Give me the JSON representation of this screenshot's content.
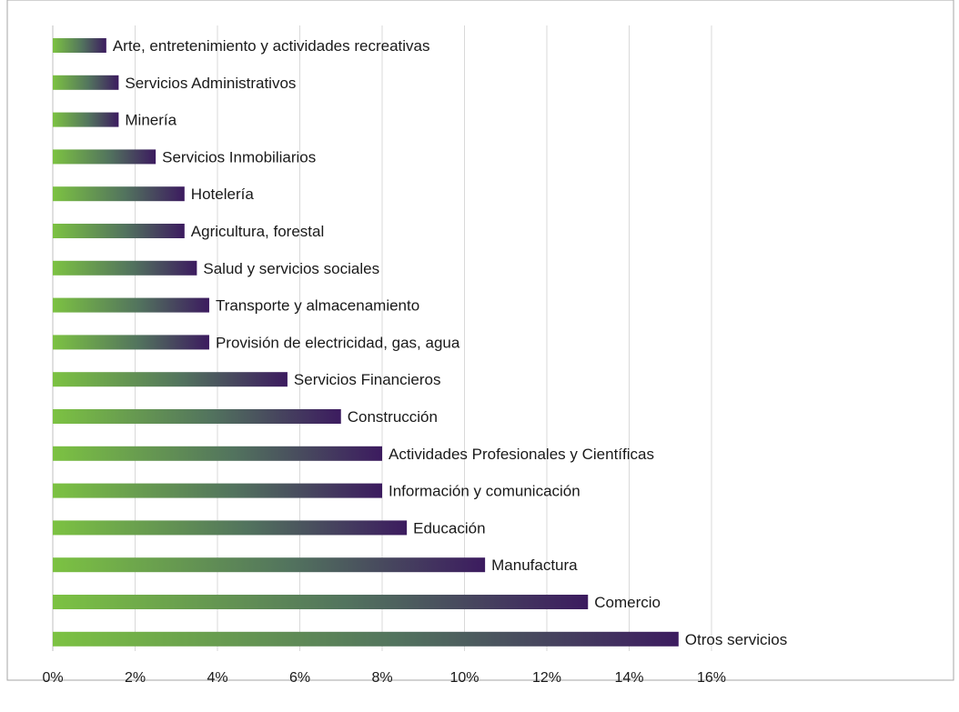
{
  "chart_data": {
    "type": "bar",
    "orientation": "horizontal",
    "title": "",
    "xlabel": "",
    "ylabel": "",
    "xlim": [
      0,
      16
    ],
    "tick_step": 2,
    "tick_labels": [
      "0%",
      "2%",
      "4%",
      "6%",
      "8%",
      "10%",
      "12%",
      "14%",
      "16%"
    ],
    "grid": true,
    "legend": "none",
    "data_labels": "category name at bar end",
    "categories": [
      "Arte, entretenimiento y actividades recreativas",
      "Servicios Administrativos",
      "Minería",
      "Servicios Inmobiliarios",
      "Hotelería",
      "Agricultura, forestal",
      "Salud y servicios sociales",
      "Transporte y almacenamiento",
      "Provisión de electricidad, gas, agua",
      "Servicios Financieros",
      "Construcción",
      "Actividades Profesionales y Científicas",
      "Información y comunicación",
      "Educación",
      "Manufactura",
      "Comercio",
      "Otros servicios"
    ],
    "values": [
      1.3,
      1.6,
      1.6,
      2.5,
      3.2,
      3.2,
      3.5,
      3.8,
      3.8,
      5.7,
      7.0,
      8.0,
      8.0,
      8.6,
      10.5,
      13.0,
      15.2
    ],
    "colors": {
      "bar_gradient_start": "#7cc242",
      "bar_gradient_mid": "#52735e",
      "bar_gradient_end": "#3c1b5f",
      "grid": "#d9d9d9",
      "axis": "#bfbfbf",
      "text": "#1a1a1a"
    }
  }
}
